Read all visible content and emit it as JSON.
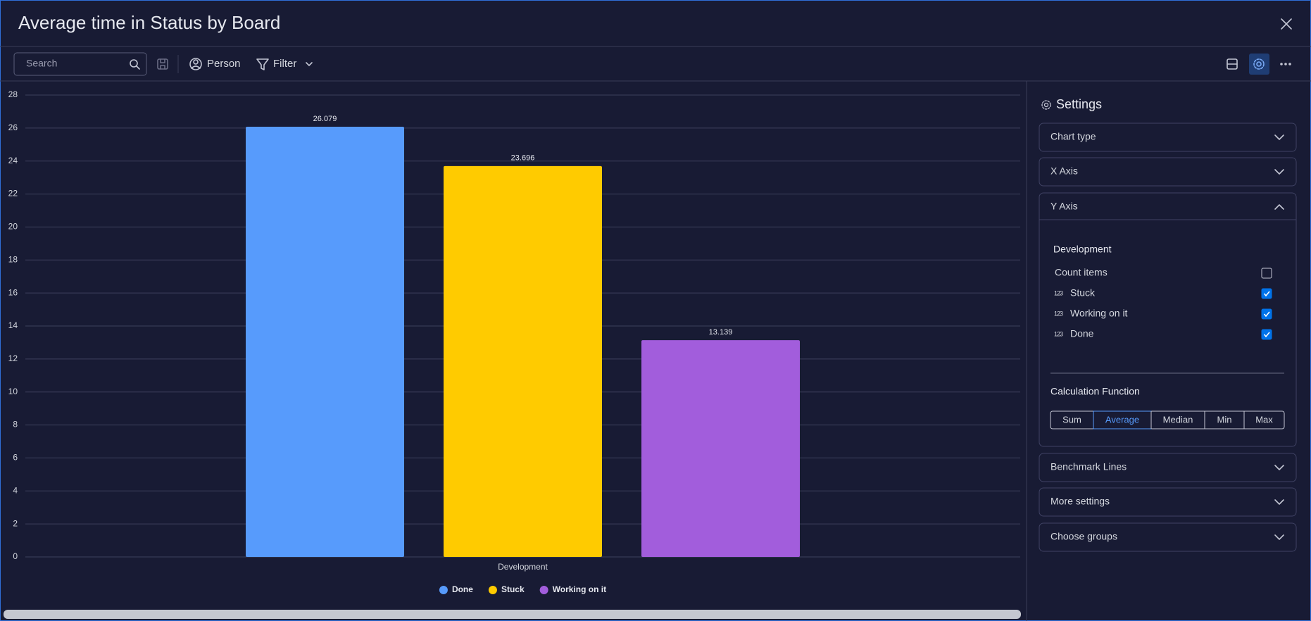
{
  "header": {
    "title": "Average time in Status by Board"
  },
  "toolbar": {
    "search_placeholder": "Search",
    "person": "Person",
    "filter": "Filter"
  },
  "chart_data": {
    "type": "bar",
    "categories": [
      "Development"
    ],
    "series": [
      {
        "name": "Done",
        "color": "#579bfc",
        "values": [
          26.079
        ]
      },
      {
        "name": "Stuck",
        "color": "#ffcb00",
        "values": [
          23.696
        ]
      },
      {
        "name": "Working on it",
        "color": "#a25ddc",
        "values": [
          13.139
        ]
      }
    ],
    "ylim": [
      0,
      28
    ],
    "yticks": [
      0,
      2,
      4,
      6,
      8,
      10,
      12,
      14,
      16,
      18,
      20,
      22,
      24,
      26,
      28
    ],
    "grid": true,
    "legend": "bottom"
  },
  "settings": {
    "title": "Settings",
    "sections": [
      "Chart type",
      "X Axis",
      "Y Axis",
      "Benchmark Lines",
      "More settings",
      "Choose groups"
    ],
    "expanded_section": 2,
    "y_axis": {
      "group": "Development",
      "items": [
        {
          "label": "Count items",
          "checked": false
        },
        {
          "icon": "123",
          "label": "Stuck",
          "checked": true
        },
        {
          "icon": "123",
          "label": "Working on it",
          "checked": true
        },
        {
          "icon": "123",
          "label": "Done",
          "checked": true
        }
      ],
      "calculation_title": "Calculation Function",
      "functions": [
        "Sum",
        "Average",
        "Median",
        "Min",
        "Max"
      ],
      "selected_function": 1
    }
  }
}
